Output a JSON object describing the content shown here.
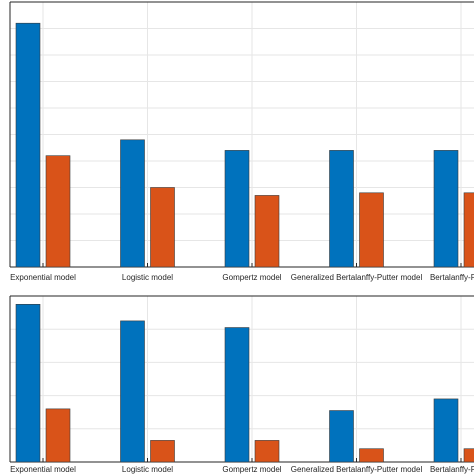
{
  "chart_data": [
    {
      "type": "bar",
      "categories": [
        "Exponential model",
        "Logistic model",
        "Gompertz model",
        "Generalized Bertalanffy-Putter model",
        "Bertalanffy-Putter"
      ],
      "series": [
        {
          "values": [
            0.92,
            0.48,
            0.44,
            0.44,
            0.44
          ]
        },
        {
          "values": [
            0.42,
            0.3,
            0.27,
            0.28,
            0.28
          ]
        }
      ],
      "ylim": [
        0,
        1
      ],
      "grid": true,
      "colors": [
        "#0072BD",
        "#D95319"
      ]
    },
    {
      "type": "bar",
      "categories": [
        "Exponential model",
        "Logistic model",
        "Gompertz model",
        "Generalized Bertalanffy-Putter model",
        "Bertalanffy-Putter"
      ],
      "series": [
        {
          "values": [
            0.95,
            0.85,
            0.81,
            0.31,
            0.38
          ]
        },
        {
          "values": [
            0.32,
            0.13,
            0.13,
            0.08,
            0.08
          ]
        }
      ],
      "ylim": [
        0,
        1
      ],
      "grid": true,
      "colors": [
        "#0072BD",
        "#D95319"
      ]
    }
  ]
}
